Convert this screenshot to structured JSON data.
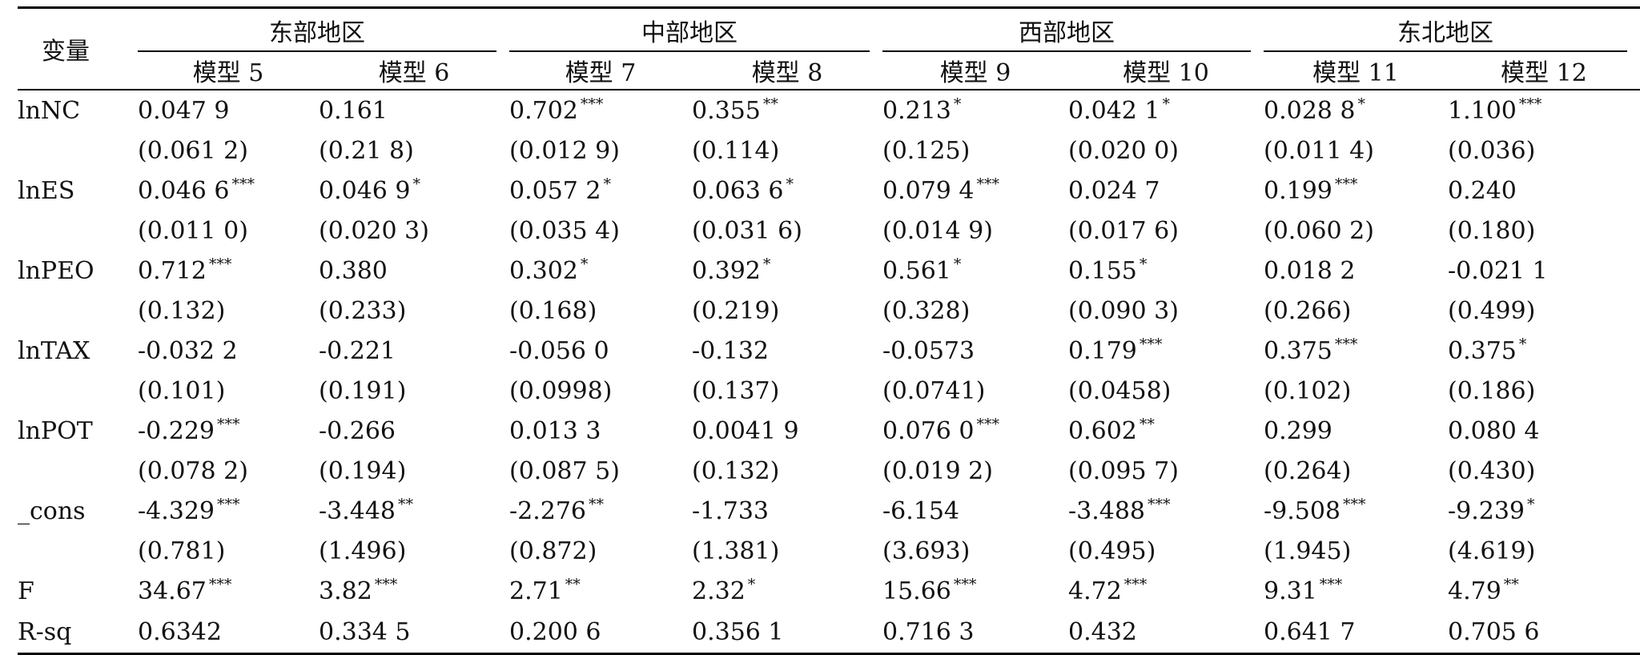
{
  "header": {
    "variable": "变量",
    "groups": [
      "东部地区",
      "中部地区",
      "西部地区",
      "东北地区"
    ],
    "models": [
      "模型 5",
      "模型 6",
      "模型 7",
      "模型 8",
      "模型 9",
      "模型 10",
      "模型 11",
      "模型 12"
    ]
  },
  "rows": [
    {
      "label": "lnNC",
      "cells": [
        {
          "v": "0.047 9",
          "s": ""
        },
        {
          "v": "0.161",
          "s": ""
        },
        {
          "v": "0.702",
          "s": "***"
        },
        {
          "v": "0.355",
          "s": "**"
        },
        {
          "v": "0.213",
          "s": "*"
        },
        {
          "v": "0.042 1",
          "s": "*"
        },
        {
          "v": "0.028 8",
          "s": "*"
        },
        {
          "v": "1.100",
          "s": "***"
        }
      ]
    },
    {
      "label": "",
      "cells": [
        {
          "v": "(0.061 2)",
          "s": ""
        },
        {
          "v": "(0.21 8)",
          "s": ""
        },
        {
          "v": "(0.012 9)",
          "s": ""
        },
        {
          "v": "(0.114)",
          "s": ""
        },
        {
          "v": "(0.125)",
          "s": ""
        },
        {
          "v": "(0.020 0)",
          "s": ""
        },
        {
          "v": "(0.011 4)",
          "s": ""
        },
        {
          "v": "(0.036)",
          "s": ""
        }
      ]
    },
    {
      "label": "lnES",
      "cells": [
        {
          "v": "0.046 6",
          "s": "***"
        },
        {
          "v": "0.046 9",
          "s": "*"
        },
        {
          "v": "0.057 2",
          "s": "*"
        },
        {
          "v": "0.063 6",
          "s": "*"
        },
        {
          "v": "0.079 4",
          "s": "***"
        },
        {
          "v": "0.024 7",
          "s": ""
        },
        {
          "v": "0.199",
          "s": "***"
        },
        {
          "v": "0.240",
          "s": ""
        }
      ]
    },
    {
      "label": "",
      "cells": [
        {
          "v": "(0.011 0)",
          "s": ""
        },
        {
          "v": "(0.020 3)",
          "s": ""
        },
        {
          "v": "(0.035 4)",
          "s": ""
        },
        {
          "v": "(0.031 6)",
          "s": ""
        },
        {
          "v": "(0.014 9)",
          "s": ""
        },
        {
          "v": "(0.017 6)",
          "s": ""
        },
        {
          "v": "(0.060 2)",
          "s": ""
        },
        {
          "v": "(0.180)",
          "s": ""
        }
      ]
    },
    {
      "label": "lnPEO",
      "cells": [
        {
          "v": "0.712",
          "s": "***"
        },
        {
          "v": "0.380",
          "s": ""
        },
        {
          "v": "0.302",
          "s": "*"
        },
        {
          "v": "0.392",
          "s": "*"
        },
        {
          "v": "0.561",
          "s": "*"
        },
        {
          "v": "0.155",
          "s": "*"
        },
        {
          "v": "0.018 2",
          "s": ""
        },
        {
          "v": "-0.021 1",
          "s": ""
        }
      ]
    },
    {
      "label": "",
      "cells": [
        {
          "v": "(0.132)",
          "s": ""
        },
        {
          "v": "(0.233)",
          "s": ""
        },
        {
          "v": "(0.168)",
          "s": ""
        },
        {
          "v": "(0.219)",
          "s": ""
        },
        {
          "v": "(0.328)",
          "s": ""
        },
        {
          "v": "(0.090 3)",
          "s": ""
        },
        {
          "v": "(0.266)",
          "s": ""
        },
        {
          "v": "(0.499)",
          "s": ""
        }
      ]
    },
    {
      "label": "lnTAX",
      "cells": [
        {
          "v": "-0.032 2",
          "s": ""
        },
        {
          "v": "-0.221",
          "s": ""
        },
        {
          "v": "-0.056 0",
          "s": ""
        },
        {
          "v": "-0.132",
          "s": ""
        },
        {
          "v": "-0.0573",
          "s": ""
        },
        {
          "v": "0.179",
          "s": "***"
        },
        {
          "v": "0.375",
          "s": "***"
        },
        {
          "v": "0.375",
          "s": "*"
        }
      ]
    },
    {
      "label": "",
      "cells": [
        {
          "v": "(0.101)",
          "s": ""
        },
        {
          "v": "(0.191)",
          "s": ""
        },
        {
          "v": "(0.0998)",
          "s": ""
        },
        {
          "v": "(0.137)",
          "s": ""
        },
        {
          "v": "(0.0741)",
          "s": ""
        },
        {
          "v": "(0.0458)",
          "s": ""
        },
        {
          "v": "(0.102)",
          "s": ""
        },
        {
          "v": "(0.186)",
          "s": ""
        }
      ]
    },
    {
      "label": "lnPOT",
      "cells": [
        {
          "v": "-0.229",
          "s": "***"
        },
        {
          "v": "-0.266",
          "s": ""
        },
        {
          "v": "0.013 3",
          "s": ""
        },
        {
          "v": "0.0041 9",
          "s": ""
        },
        {
          "v": "0.076 0",
          "s": "***"
        },
        {
          "v": "0.602",
          "s": "**"
        },
        {
          "v": "0.299",
          "s": ""
        },
        {
          "v": "0.080 4",
          "s": ""
        }
      ]
    },
    {
      "label": "",
      "cells": [
        {
          "v": "(0.078 2)",
          "s": ""
        },
        {
          "v": "(0.194)",
          "s": ""
        },
        {
          "v": "(0.087 5)",
          "s": ""
        },
        {
          "v": "(0.132)",
          "s": ""
        },
        {
          "v": "(0.019 2)",
          "s": ""
        },
        {
          "v": "(0.095 7)",
          "s": ""
        },
        {
          "v": "(0.264)",
          "s": ""
        },
        {
          "v": "(0.430)",
          "s": ""
        }
      ]
    },
    {
      "label": "_cons",
      "cells": [
        {
          "v": "-4.329",
          "s": "***"
        },
        {
          "v": "-3.448",
          "s": "**"
        },
        {
          "v": "-2.276",
          "s": "**"
        },
        {
          "v": "-1.733",
          "s": ""
        },
        {
          "v": "-6.154",
          "s": ""
        },
        {
          "v": "-3.488",
          "s": "***"
        },
        {
          "v": "-9.508",
          "s": "***"
        },
        {
          "v": "-9.239",
          "s": "*"
        }
      ]
    },
    {
      "label": "",
      "cells": [
        {
          "v": "(0.781)",
          "s": ""
        },
        {
          "v": "(1.496)",
          "s": ""
        },
        {
          "v": "(0.872)",
          "s": ""
        },
        {
          "v": "(1.381)",
          "s": ""
        },
        {
          "v": "(3.693)",
          "s": ""
        },
        {
          "v": "(0.495)",
          "s": ""
        },
        {
          "v": "(1.945)",
          "s": ""
        },
        {
          "v": "(4.619)",
          "s": ""
        }
      ]
    },
    {
      "label": "F",
      "cells": [
        {
          "v": "34.67",
          "s": "***"
        },
        {
          "v": "3.82",
          "s": "***"
        },
        {
          "v": "2.71",
          "s": "**"
        },
        {
          "v": "2.32",
          "s": "*"
        },
        {
          "v": "15.66",
          "s": "***"
        },
        {
          "v": "4.72",
          "s": "***"
        },
        {
          "v": "9.31",
          "s": "***"
        },
        {
          "v": "4.79",
          "s": "**"
        }
      ]
    },
    {
      "label": "R-sq",
      "cells": [
        {
          "v": "0.6342",
          "s": ""
        },
        {
          "v": "0.334 5",
          "s": ""
        },
        {
          "v": "0.200 6",
          "s": ""
        },
        {
          "v": "0.356 1",
          "s": ""
        },
        {
          "v": "0.716 3",
          "s": ""
        },
        {
          "v": "0.432",
          "s": ""
        },
        {
          "v": "0.641 7",
          "s": ""
        },
        {
          "v": "0.705 6",
          "s": ""
        }
      ]
    }
  ]
}
